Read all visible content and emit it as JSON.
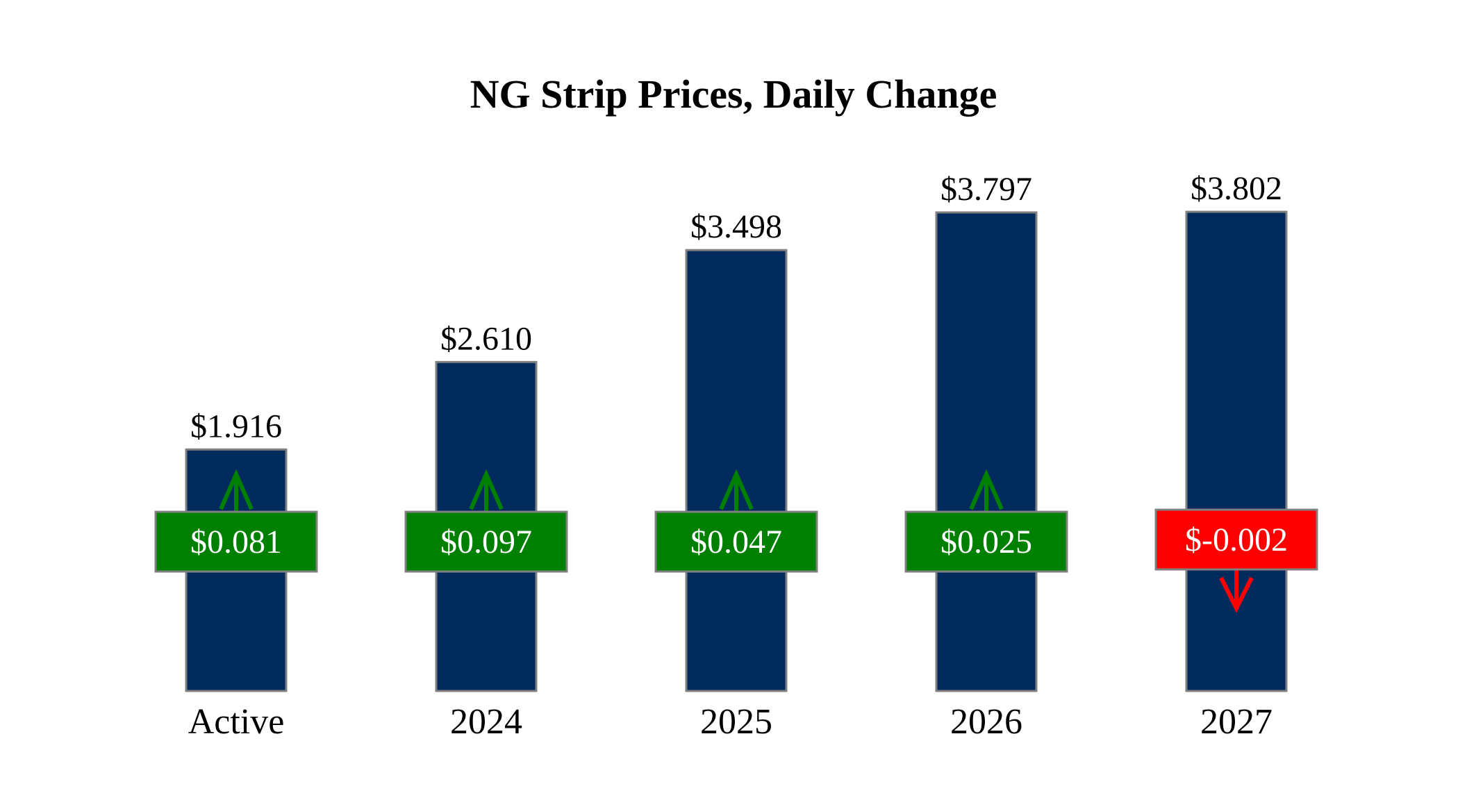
{
  "chart_data": {
    "type": "bar",
    "title": "NG Strip Prices, Daily Change",
    "categories": [
      "Active",
      "2024",
      "2025",
      "2026",
      "2027"
    ],
    "values": [
      1.916,
      2.61,
      3.498,
      3.797,
      3.802
    ],
    "value_labels": [
      "$1.916",
      "$2.610",
      "$3.498",
      "$3.797",
      "$3.802"
    ],
    "changes": [
      0.081,
      0.097,
      0.047,
      0.025,
      -0.002
    ],
    "change_labels": [
      "$0.081",
      "$0.097",
      "$0.047",
      "$0.025",
      "$-0.002"
    ],
    "ylim": [
      0,
      3.802
    ],
    "grid": false,
    "colors": {
      "bar": "#002B5C",
      "bar_border": "#808080",
      "positive": "#008000",
      "negative": "#FF0000",
      "change_text": "#FFFFFF"
    }
  }
}
